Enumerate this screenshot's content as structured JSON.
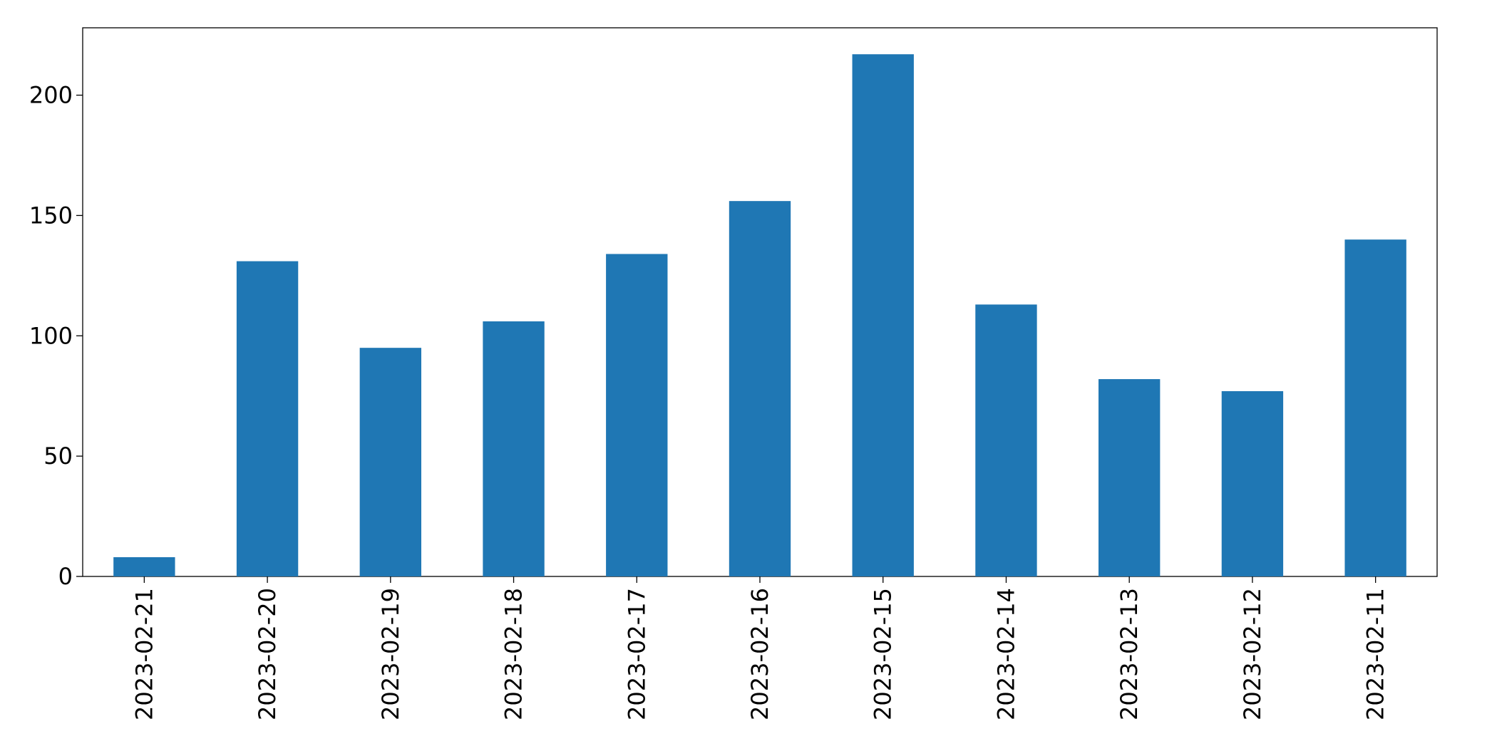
{
  "chart_data": {
    "type": "bar",
    "categories": [
      "2023-02-21",
      "2023-02-20",
      "2023-02-19",
      "2023-02-18",
      "2023-02-17",
      "2023-02-16",
      "2023-02-15",
      "2023-02-14",
      "2023-02-13",
      "2023-02-12",
      "2023-02-11"
    ],
    "values": [
      8,
      131,
      95,
      106,
      134,
      156,
      217,
      113,
      82,
      77,
      140
    ],
    "color": "#1f77b4",
    "ylim": [
      0,
      228
    ],
    "yticks": [
      0,
      50,
      100,
      150,
      200
    ],
    "grid": false
  }
}
